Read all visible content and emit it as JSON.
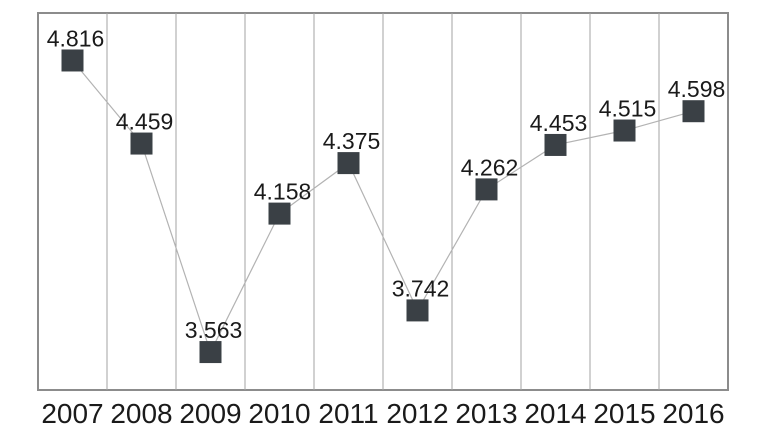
{
  "chart_data": {
    "type": "line",
    "title": "",
    "xlabel": "",
    "ylabel": "",
    "categories": [
      "2007",
      "2008",
      "2009",
      "2010",
      "2011",
      "2012",
      "2013",
      "2014",
      "2015",
      "2016"
    ],
    "values": [
      4.816,
      4.459,
      3.563,
      4.158,
      4.375,
      3.742,
      4.262,
      4.453,
      4.515,
      4.598
    ],
    "data_labels": [
      "4.816",
      "4.459",
      "3.563",
      "4.158",
      "4.375",
      "3.742",
      "4.262",
      "4.453",
      "4.515",
      "4.598"
    ],
    "series_name": "",
    "ylim": [
      3.4,
      5.02
    ],
    "grid": "vertical-only",
    "legend": "none",
    "marker": "square",
    "colors": {
      "marker_fill": "#3a4045",
      "line": "#b3b3b3",
      "gridline": "#a3a3a3",
      "plot_border": "#8c8c8c",
      "text": "#1a1a1a",
      "background": "#ffffff"
    }
  }
}
